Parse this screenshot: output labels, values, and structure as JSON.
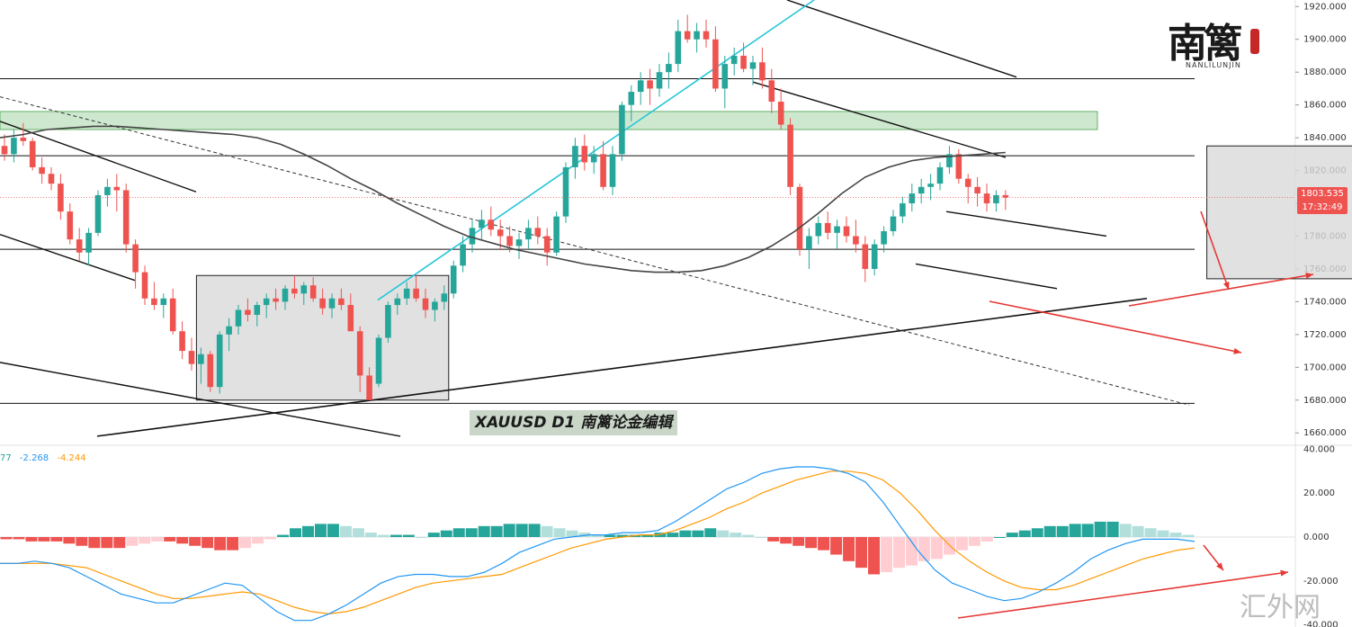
{
  "chart_data": [
    {
      "type": "candlestick",
      "title": "XAUUSD  D1  南篱论金编辑",
      "symbol": "XAUUSD",
      "timeframe": "D1",
      "yticks": [
        1920,
        1900,
        1880,
        1860,
        1840,
        1820,
        1800,
        1780,
        1760,
        1740,
        1720,
        1700,
        1680,
        1660
      ],
      "ylim": [
        1653,
        1924
      ],
      "last_price": "1803.535",
      "countdown": "17:32:49",
      "colors": {
        "up": "#26a69a",
        "down": "#ef5350",
        "ma": "#444444",
        "channel": "#26c6da",
        "arrow": "#e53935",
        "zone": "#a5d6a7",
        "box": "#d9d9d9"
      },
      "candles": [
        [
          1835,
          1842,
          1826,
          1830
        ],
        [
          1830,
          1845,
          1825,
          1840
        ],
        [
          1840,
          1849,
          1835,
          1838
        ],
        [
          1838,
          1840,
          1820,
          1822
        ],
        [
          1822,
          1828,
          1812,
          1818
        ],
        [
          1818,
          1822,
          1808,
          1812
        ],
        [
          1812,
          1818,
          1790,
          1795
        ],
        [
          1795,
          1800,
          1775,
          1778
        ],
        [
          1778,
          1785,
          1765,
          1770
        ],
        [
          1770,
          1785,
          1762,
          1782
        ],
        [
          1782,
          1808,
          1780,
          1805
        ],
        [
          1805,
          1815,
          1798,
          1810
        ],
        [
          1810,
          1818,
          1795,
          1808
        ],
        [
          1808,
          1812,
          1770,
          1775
        ],
        [
          1775,
          1778,
          1748,
          1758
        ],
        [
          1758,
          1762,
          1738,
          1742
        ],
        [
          1742,
          1752,
          1735,
          1738
        ],
        [
          1738,
          1745,
          1730,
          1742
        ],
        [
          1742,
          1748,
          1720,
          1722
        ],
        [
          1722,
          1728,
          1705,
          1710
        ],
        [
          1710,
          1718,
          1698,
          1702
        ],
        [
          1702,
          1712,
          1690,
          1708
        ],
        [
          1708,
          1710,
          1685,
          1688
        ],
        [
          1688,
          1722,
          1684,
          1720
        ],
        [
          1720,
          1730,
          1710,
          1725
        ],
        [
          1725,
          1738,
          1720,
          1735
        ],
        [
          1735,
          1742,
          1728,
          1732
        ],
        [
          1732,
          1740,
          1725,
          1738
        ],
        [
          1738,
          1745,
          1730,
          1742
        ],
        [
          1742,
          1748,
          1735,
          1740
        ],
        [
          1740,
          1750,
          1735,
          1748
        ],
        [
          1748,
          1756,
          1742,
          1745
        ],
        [
          1745,
          1752,
          1738,
          1750
        ],
        [
          1750,
          1755,
          1740,
          1742
        ],
        [
          1742,
          1748,
          1732,
          1736
        ],
        [
          1736,
          1745,
          1730,
          1742
        ],
        [
          1742,
          1748,
          1735,
          1738
        ],
        [
          1738,
          1745,
          1722,
          1722
        ],
        [
          1722,
          1725,
          1685,
          1695
        ],
        [
          1695,
          1700,
          1680,
          1680
        ],
        [
          1690,
          1720,
          1688,
          1718
        ],
        [
          1718,
          1740,
          1715,
          1738
        ],
        [
          1738,
          1745,
          1732,
          1742
        ],
        [
          1742,
          1752,
          1738,
          1748
        ],
        [
          1748,
          1756,
          1740,
          1742
        ],
        [
          1742,
          1748,
          1730,
          1735
        ],
        [
          1735,
          1742,
          1728,
          1740
        ],
        [
          1740,
          1750,
          1735,
          1745
        ],
        [
          1745,
          1765,
          1742,
          1762
        ],
        [
          1762,
          1780,
          1758,
          1775
        ],
        [
          1775,
          1790,
          1770,
          1785
        ],
        [
          1785,
          1796,
          1778,
          1790
        ],
        [
          1790,
          1798,
          1780,
          1784
        ],
        [
          1784,
          1790,
          1772,
          1780
        ],
        [
          1780,
          1786,
          1770,
          1774
        ],
        [
          1774,
          1782,
          1766,
          1778
        ],
        [
          1778,
          1790,
          1772,
          1785
        ],
        [
          1785,
          1792,
          1775,
          1780
        ],
        [
          1780,
          1785,
          1762,
          1770
        ],
        [
          1770,
          1795,
          1768,
          1792
        ],
        [
          1792,
          1825,
          1788,
          1822
        ],
        [
          1822,
          1840,
          1815,
          1835
        ],
        [
          1835,
          1842,
          1820,
          1825
        ],
        [
          1825,
          1835,
          1818,
          1830
        ],
        [
          1830,
          1838,
          1808,
          1810
        ],
        [
          1810,
          1835,
          1805,
          1830
        ],
        [
          1830,
          1862,
          1826,
          1860
        ],
        [
          1860,
          1872,
          1850,
          1868
        ],
        [
          1868,
          1880,
          1860,
          1875
        ],
        [
          1875,
          1882,
          1860,
          1870
        ],
        [
          1870,
          1885,
          1865,
          1880
        ],
        [
          1880,
          1892,
          1870,
          1885
        ],
        [
          1885,
          1912,
          1880,
          1905
        ],
        [
          1905,
          1915,
          1898,
          1900
        ],
        [
          1900,
          1910,
          1892,
          1905
        ],
        [
          1905,
          1912,
          1895,
          1900
        ],
        [
          1900,
          1908,
          1868,
          1870
        ],
        [
          1870,
          1890,
          1858,
          1885
        ],
        [
          1885,
          1895,
          1878,
          1890
        ],
        [
          1890,
          1898,
          1880,
          1882
        ],
        [
          1882,
          1890,
          1872,
          1886
        ],
        [
          1886,
          1895,
          1870,
          1875
        ],
        [
          1875,
          1882,
          1855,
          1862
        ],
        [
          1862,
          1870,
          1845,
          1848
        ],
        [
          1848,
          1852,
          1805,
          1810
        ],
        [
          1810,
          1812,
          1768,
          1772
        ],
        [
          1772,
          1785,
          1760,
          1780
        ],
        [
          1780,
          1792,
          1775,
          1788
        ],
        [
          1788,
          1795,
          1778,
          1782
        ],
        [
          1782,
          1790,
          1772,
          1786
        ],
        [
          1786,
          1792,
          1776,
          1780
        ],
        [
          1780,
          1790,
          1770,
          1775
        ],
        [
          1775,
          1780,
          1752,
          1760
        ],
        [
          1760,
          1778,
          1756,
          1775
        ],
        [
          1775,
          1786,
          1770,
          1783
        ],
        [
          1783,
          1796,
          1780,
          1792
        ],
        [
          1792,
          1804,
          1788,
          1800
        ],
        [
          1800,
          1812,
          1795,
          1806
        ],
        [
          1806,
          1815,
          1800,
          1810
        ],
        [
          1810,
          1818,
          1802,
          1812
        ],
        [
          1812,
          1825,
          1808,
          1822
        ],
        [
          1822,
          1835,
          1818,
          1830
        ],
        [
          1830,
          1833,
          1812,
          1815
        ],
        [
          1815,
          1818,
          1800,
          1810
        ],
        [
          1810,
          1816,
          1798,
          1806
        ],
        [
          1806,
          1812,
          1795,
          1800
        ],
        [
          1800,
          1808,
          1795,
          1805
        ],
        [
          1805,
          1808,
          1796,
          1803.535
        ]
      ],
      "ma_points": [
        [
          1840,
          1842,
          1845,
          1846,
          1847,
          1847,
          1846,
          1845,
          1844,
          1843,
          1842,
          1840,
          1836,
          1830,
          1823,
          1815,
          1808,
          1800,
          1793,
          1786,
          1780,
          1776,
          1772,
          1769,
          1766,
          1763,
          1761,
          1759,
          1758,
          1758,
          1759,
          1762,
          1767,
          1774,
          1783,
          1794,
          1806,
          1816,
          1822,
          1826,
          1828,
          1829,
          1830,
          1831
        ]
      ],
      "horizontal_levels": [
        1876,
        1829,
        1772,
        1678
      ],
      "resistance_zone": [
        1845,
        1856
      ],
      "consolidation_boxes": [
        {
          "t0": 21,
          "t1": 47,
          "p0": 1756,
          "p1": 1680
        },
        {
          "t0": 129,
          "t1": 155,
          "p0": 1835,
          "p1": 1754
        }
      ]
    },
    {
      "type": "macd",
      "legend_values": [
        "77",
        "-2.268",
        "-4.244"
      ],
      "yticks": [
        40,
        20,
        0,
        -20,
        -40
      ],
      "ylim": [
        -41,
        41
      ],
      "colors": {
        "macd": "#2196f3",
        "signal": "#ff9800",
        "hist_up": "#26a69a",
        "hist_up_fading": "#b2dfdb",
        "hist_down": "#ef5350",
        "hist_down_fading": "#ffcdd2"
      },
      "macd_line": [
        -12,
        -12,
        -11,
        -12,
        -14,
        -18,
        -22,
        -26,
        -28,
        -30,
        -30,
        -27,
        -24,
        -21,
        -22,
        -28,
        -34,
        -38,
        -38,
        -35,
        -31,
        -26,
        -21,
        -18,
        -17,
        -17,
        -18,
        -18,
        -16,
        -12,
        -7,
        -4,
        -1,
        0,
        1,
        1,
        2,
        2,
        3,
        7,
        12,
        17,
        22,
        25,
        29,
        31,
        32,
        32,
        31,
        29,
        25,
        16,
        5,
        -6,
        -15,
        -21,
        -24,
        -27,
        -29,
        -28,
        -25,
        -21,
        -16,
        -10,
        -6,
        -3,
        -1,
        -1,
        -1,
        -2
      ],
      "signal_line": [
        -12,
        -12,
        -12,
        -12,
        -13,
        -14,
        -17,
        -20,
        -23,
        -26,
        -28,
        -28,
        -27,
        -26,
        -25,
        -26,
        -29,
        -32,
        -34,
        -35,
        -34,
        -32,
        -29,
        -26,
        -23,
        -21,
        -20,
        -19,
        -18,
        -17,
        -14,
        -11,
        -8,
        -5,
        -3,
        -1,
        0,
        1,
        1,
        3,
        6,
        9,
        13,
        16,
        20,
        23,
        26,
        28,
        30,
        30,
        29,
        26,
        20,
        12,
        3,
        -5,
        -11,
        -16,
        -20,
        -23,
        -24,
        -24,
        -22,
        -19,
        -16,
        -13,
        -10,
        -8,
        -6,
        -5
      ],
      "histogram": [
        -1,
        -1,
        -2,
        -2,
        -2,
        -3,
        -4,
        -5,
        -5,
        -5,
        -4,
        -3,
        -2,
        -2,
        -3,
        -4,
        -5,
        -6,
        -6,
        -5,
        -3,
        -1,
        1,
        4,
        5,
        6,
        6,
        5,
        4,
        2,
        1,
        1,
        1,
        0,
        2,
        3,
        4,
        4,
        5,
        5,
        6,
        6,
        6,
        5,
        4,
        3,
        2,
        1,
        1,
        1,
        1,
        1,
        2,
        2,
        3,
        3,
        4,
        3,
        2,
        1,
        0,
        -2,
        -3,
        -4,
        -5,
        -6,
        -8,
        -11,
        -14,
        -17,
        -16,
        -14,
        -13,
        -11,
        -10,
        -8,
        -6,
        -4,
        -2,
        0,
        2,
        3,
        4,
        5,
        5,
        6,
        6,
        7,
        7,
        6,
        5,
        4,
        3,
        2,
        1
      ]
    }
  ],
  "branding": {
    "logo_text": "南篱",
    "logo_sub": "NANLILUNJIN",
    "watermark": "汇外网"
  }
}
